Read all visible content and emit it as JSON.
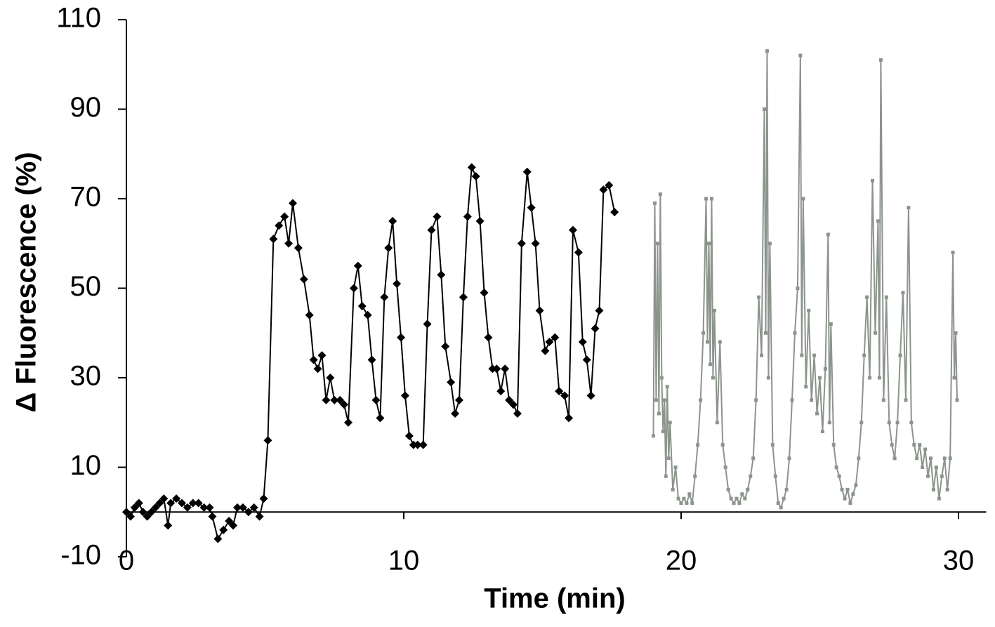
{
  "chart_data": {
    "type": "line",
    "xlabel": "Time (min)",
    "ylabel": "Δ Fluorescence (%)",
    "xlim": [
      0,
      31
    ],
    "xticks": [
      0,
      10,
      20,
      30
    ],
    "ylim": [
      -10,
      110
    ],
    "yticks": [
      -10,
      10,
      30,
      50,
      70,
      90,
      110
    ],
    "series": [
      {
        "color": "#000000",
        "marker": "diamond",
        "x": [
          0,
          0.15,
          0.3,
          0.45,
          0.6,
          0.75,
          0.9,
          1.05,
          1.2,
          1.35,
          1.5,
          1.6,
          1.8,
          2.0,
          2.2,
          2.4,
          2.6,
          2.8,
          3.0,
          3.1,
          3.3,
          3.5,
          3.7,
          3.85,
          4.0,
          4.2,
          4.4,
          4.6,
          4.8,
          4.95,
          5.1,
          5.3,
          5.5,
          5.7,
          5.85,
          6.0,
          6.2,
          6.4,
          6.6,
          6.75,
          6.9,
          7.05,
          7.2,
          7.35,
          7.5,
          7.7,
          7.85,
          8.0,
          8.2,
          8.35,
          8.5,
          8.7,
          8.85,
          9.0,
          9.15,
          9.3,
          9.45,
          9.6,
          9.75,
          9.9,
          10.05,
          10.2,
          10.35,
          10.5,
          10.7,
          10.85,
          11.0,
          11.2,
          11.35,
          11.5,
          11.7,
          11.85,
          12.0,
          12.15,
          12.3,
          12.45,
          12.6,
          12.75,
          12.9,
          13.05,
          13.2,
          13.35,
          13.5,
          13.65,
          13.8,
          13.95,
          14.1,
          14.25,
          14.45,
          14.6,
          14.75,
          14.9,
          15.1,
          15.25,
          15.45,
          15.6,
          15.8,
          15.95,
          16.1,
          16.3,
          16.45,
          16.6,
          16.75,
          16.9,
          17.05,
          17.2,
          17.4,
          17.6
        ],
        "values": [
          0,
          -1,
          1,
          2,
          0,
          -1,
          0,
          1,
          2,
          3,
          -3,
          2,
          3,
          2,
          1,
          2,
          2,
          1,
          1,
          -1,
          -6,
          -4,
          -2,
          -3,
          1,
          1,
          0,
          1,
          -1,
          3,
          16,
          61,
          64,
          66,
          60,
          69,
          59,
          52,
          44,
          34,
          32,
          35,
          25,
          30,
          25,
          25,
          24,
          20,
          50,
          55,
          46,
          44,
          34,
          25,
          21,
          48,
          59,
          65,
          51,
          39,
          26,
          17,
          15,
          15,
          15,
          42,
          63,
          66,
          53,
          37,
          29,
          22,
          25,
          48,
          66,
          77,
          75,
          65,
          49,
          39,
          32,
          32,
          27,
          32,
          25,
          24,
          22,
          60,
          76,
          68,
          60,
          45,
          36,
          38,
          39,
          27,
          26,
          21,
          63,
          58,
          38,
          34,
          26,
          41,
          45,
          72,
          73,
          67
        ]
      },
      {
        "color": "#8c948c",
        "marker": "square",
        "x": [
          19.0,
          19.05,
          19.1,
          19.15,
          19.2,
          19.25,
          19.3,
          19.35,
          19.4,
          19.45,
          19.5,
          19.55,
          19.6,
          19.7,
          19.8,
          19.9,
          20.0,
          20.1,
          20.2,
          20.3,
          20.4,
          20.5,
          20.6,
          20.7,
          20.8,
          20.9,
          20.95,
          21.0,
          21.05,
          21.1,
          21.15,
          21.2,
          21.3,
          21.4,
          21.5,
          21.6,
          21.7,
          21.8,
          21.9,
          22.0,
          22.1,
          22.2,
          22.3,
          22.4,
          22.5,
          22.6,
          22.7,
          22.8,
          22.9,
          23.0,
          23.05,
          23.1,
          23.15,
          23.2,
          23.3,
          23.4,
          23.5,
          23.6,
          23.7,
          23.8,
          23.9,
          24.0,
          24.1,
          24.2,
          24.3,
          24.35,
          24.4,
          24.5,
          24.6,
          24.7,
          24.8,
          24.9,
          25.0,
          25.1,
          25.2,
          25.3,
          25.35,
          25.4,
          25.5,
          25.6,
          25.7,
          25.8,
          25.9,
          26.0,
          26.1,
          26.2,
          26.3,
          26.4,
          26.5,
          26.6,
          26.7,
          26.8,
          26.9,
          27.0,
          27.1,
          27.15,
          27.2,
          27.3,
          27.4,
          27.5,
          27.6,
          27.7,
          27.8,
          27.9,
          28.0,
          28.1,
          28.2,
          28.3,
          28.4,
          28.5,
          28.6,
          28.7,
          28.8,
          28.9,
          29.0,
          29.1,
          29.2,
          29.3,
          29.4,
          29.5,
          29.6,
          29.7,
          29.8,
          29.85,
          29.9,
          29.95
        ],
        "values": [
          17,
          69,
          25,
          60,
          22,
          71,
          30,
          18,
          25,
          8,
          28,
          12,
          20,
          5,
          10,
          3,
          2,
          3,
          2,
          4,
          2,
          8,
          15,
          25,
          40,
          70,
          38,
          60,
          33,
          70,
          30,
          45,
          20,
          38,
          15,
          10,
          5,
          3,
          2,
          3,
          2,
          4,
          3,
          5,
          8,
          12,
          25,
          48,
          35,
          90,
          40,
          103,
          30,
          60,
          15,
          8,
          2,
          1,
          3,
          5,
          12,
          25,
          40,
          50,
          102,
          35,
          70,
          28,
          45,
          25,
          35,
          22,
          30,
          18,
          32,
          62,
          20,
          42,
          15,
          10,
          8,
          5,
          3,
          5,
          2,
          4,
          6,
          12,
          20,
          35,
          48,
          30,
          74,
          40,
          65,
          30,
          101,
          25,
          48,
          20,
          15,
          12,
          20,
          35,
          49,
          25,
          68,
          20,
          15,
          12,
          15,
          10,
          14,
          8,
          12,
          5,
          10,
          3,
          8,
          12,
          5,
          12,
          58,
          30,
          40,
          25
        ]
      }
    ]
  }
}
